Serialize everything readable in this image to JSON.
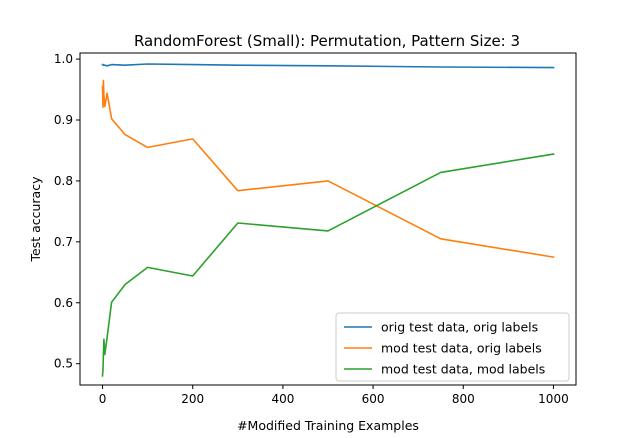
{
  "chart_data": {
    "type": "line",
    "title": "RandomForest (Small): Permutation, Pattern Size: 3",
    "xlabel": "#Modified Training Examples",
    "ylabel": "Test accuracy",
    "xlim": [
      -50,
      1050
    ],
    "ylim": [
      0.465,
      1.01
    ],
    "xticks": [
      0,
      200,
      400,
      600,
      800,
      1000
    ],
    "yticks": [
      0.5,
      0.6,
      0.7,
      0.8,
      0.9,
      1.0
    ],
    "xtick_labels": [
      "0",
      "200",
      "400",
      "600",
      "800",
      "1000"
    ],
    "ytick_labels": [
      "0.5",
      "0.6",
      "0.7",
      "0.8",
      "0.9",
      "1.0"
    ],
    "grid": false,
    "legend": "lower-right",
    "series": [
      {
        "name": "orig test data, orig labels",
        "color": "#1f77b4",
        "x": [
          0,
          1,
          2,
          3,
          5,
          10,
          20,
          50,
          100,
          200,
          300,
          500,
          750,
          1000
        ],
        "y": [
          0.991,
          0.991,
          0.99,
          0.99,
          0.99,
          0.989,
          0.991,
          0.99,
          0.992,
          0.991,
          0.99,
          0.989,
          0.987,
          0.986
        ]
      },
      {
        "name": "mod test data, orig labels",
        "color": "#ff7f0e",
        "x": [
          0,
          1,
          2,
          3,
          5,
          10,
          20,
          50,
          100,
          200,
          300,
          500,
          750,
          1000
        ],
        "y": [
          0.955,
          0.921,
          0.965,
          0.94,
          0.922,
          0.944,
          0.902,
          0.876,
          0.855,
          0.869,
          0.784,
          0.8,
          0.705,
          0.675
        ]
      },
      {
        "name": "mod test data, mod labels",
        "color": "#2ca02c",
        "x": [
          0,
          1,
          2,
          3,
          5,
          10,
          20,
          50,
          100,
          200,
          300,
          500,
          750,
          1000
        ],
        "y": [
          0.48,
          0.49,
          0.515,
          0.54,
          0.515,
          0.543,
          0.601,
          0.63,
          0.658,
          0.644,
          0.731,
          0.718,
          0.814,
          0.844
        ]
      }
    ]
  }
}
